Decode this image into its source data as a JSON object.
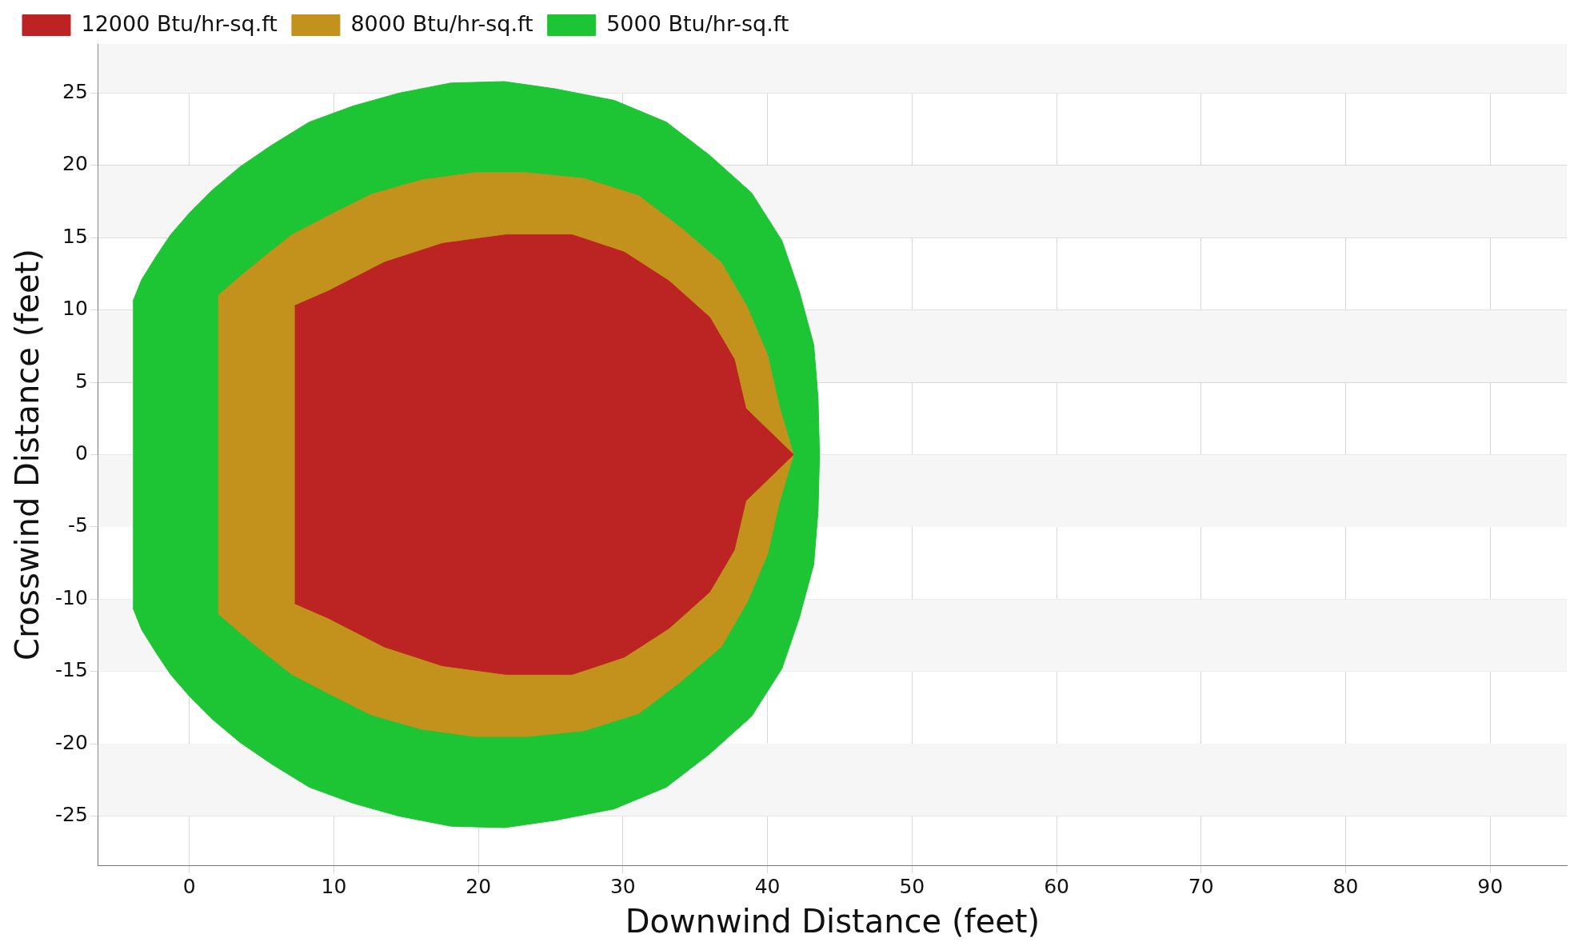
{
  "chart_data": {
    "type": "area",
    "xlabel": "Downwind Distance (feet)",
    "ylabel": "Crosswind Distance (feet)",
    "xlim": [
      -6.3,
      95.3
    ],
    "ylim": [
      -28.4,
      28.4
    ],
    "xticks": [
      0,
      10,
      20,
      30,
      40,
      50,
      60,
      70,
      80,
      90
    ],
    "yticks": [
      -25,
      -20,
      -15,
      -10,
      -5,
      0,
      5,
      10,
      15,
      20,
      25
    ],
    "grid": true,
    "legend": "top left",
    "series": [
      {
        "name": "12000 Btu/hr-sq.ft",
        "color": "#bc2323",
        "x": [
          7.3,
          9.6,
          13.5,
          17.5,
          21.9,
          26.5,
          30.1,
          33.2,
          36,
          37.7,
          38.5,
          41.8,
          38.5,
          37.7,
          36,
          33.2,
          30.1,
          26.5,
          21.9,
          17.5,
          13.5,
          9.6,
          7.3
        ],
        "values": [
          10.3,
          11.3,
          13.3,
          14.6,
          15.2,
          15.2,
          14,
          12,
          9.5,
          6.6,
          3.2,
          0,
          -3.2,
          -6.6,
          -9.5,
          -12,
          -14,
          -15.2,
          -15.2,
          -14.6,
          -13.3,
          -11.3,
          -10.3
        ]
      },
      {
        "name": "8000 Btu/hr-sq.ft",
        "color": "#c2921d",
        "x": [
          2,
          3.5,
          5.2,
          7.1,
          9.6,
          12.6,
          16.1,
          19.8,
          23.3,
          27.3,
          31.1,
          34,
          36.8,
          38.6,
          40,
          40.8,
          41.8,
          40.8,
          40,
          38.6,
          36.8,
          34,
          31.1,
          27.3,
          23.3,
          19.8,
          16.1,
          12.6,
          9.6,
          7.1,
          5.2,
          3.5,
          2
        ],
        "values": [
          11,
          12.3,
          13.7,
          15.2,
          16.5,
          18,
          19,
          19.5,
          19.5,
          19.1,
          17.9,
          15.7,
          13.3,
          10.2,
          6.9,
          3.4,
          0,
          -3.4,
          -6.9,
          -10.2,
          -13.3,
          -15.7,
          -17.9,
          -19.1,
          -19.5,
          -19.5,
          -19,
          -18,
          -16.5,
          -15.2,
          -13.7,
          -12.3,
          -11
        ]
      },
      {
        "name": "5000 Btu/hr-sq.ft",
        "color": "#1dc433",
        "x": [
          -3.9,
          -3.3,
          -2.3,
          -1.3,
          0,
          1.6,
          3.5,
          5.7,
          8.3,
          11.3,
          14.5,
          18.1,
          21.8,
          25.3,
          29.4,
          33,
          36,
          38.9,
          41,
          42.2,
          43.2,
          43.5,
          43.6,
          43.5,
          43.2,
          42.2,
          41,
          38.9,
          36,
          33,
          29.4,
          25.3,
          21.8,
          18.1,
          14.5,
          11.3,
          8.3,
          5.7,
          3.5,
          1.6,
          0,
          -1.3,
          -2.3,
          -3.3,
          -3.9
        ],
        "values": [
          10.6,
          12.1,
          13.7,
          15.2,
          16.7,
          18.3,
          19.9,
          21.4,
          23,
          24.1,
          25,
          25.7,
          25.8,
          25.3,
          24.5,
          23,
          20.7,
          18.1,
          14.8,
          11.3,
          7.6,
          3.9,
          0,
          -3.9,
          -7.6,
          -11.3,
          -14.8,
          -18.1,
          -20.7,
          -23,
          -24.5,
          -25.3,
          -25.8,
          -25.7,
          -25,
          -24.1,
          -23,
          -21.4,
          -19.9,
          -18.3,
          -16.7,
          -15.2,
          -13.7,
          -12.1,
          -10.6
        ]
      }
    ]
  }
}
